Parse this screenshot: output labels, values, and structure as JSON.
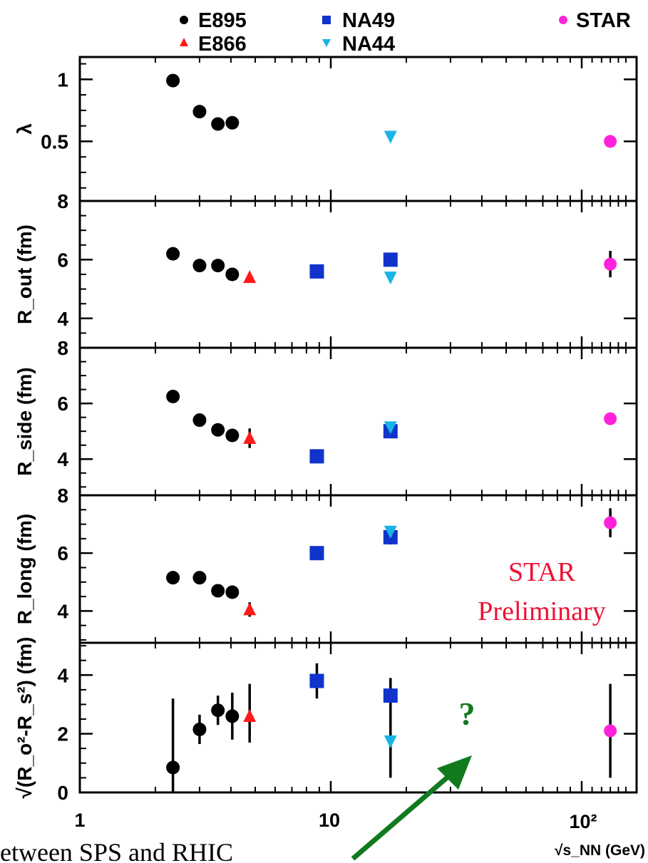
{
  "chart_data": {
    "type": "scatter",
    "x_scale": "log",
    "xlim": [
      1,
      160
    ],
    "xlabel": "√s_NN (GeV)",
    "x_ticks": [
      {
        "value": 1,
        "label": "1"
      },
      {
        "value": 10,
        "label": "10"
      },
      {
        "value": 100,
        "label": "10²"
      }
    ],
    "legend": [
      {
        "name": "E895",
        "marker": "circle",
        "color": "#000000"
      },
      {
        "name": "E866",
        "marker": "triangle-up",
        "color": "#ff1a1a"
      },
      {
        "name": "NA49",
        "marker": "square",
        "color": "#1033cc"
      },
      {
        "name": "NA44",
        "marker": "triangle-down",
        "color": "#19b4e6"
      },
      {
        "name": "STAR",
        "marker": "circle",
        "color": "#ff22dd"
      }
    ],
    "panels": [
      {
        "ylabel": "λ",
        "ylim": [
          0.02,
          1.18
        ],
        "ticks": [
          {
            "value": 1,
            "label": "1"
          },
          {
            "value": 0.5,
            "label": "0.5"
          }
        ],
        "series": {
          "E895": [
            [
              2.35,
              0.99
            ],
            [
              3.0,
              0.74
            ],
            [
              3.55,
              0.64
            ],
            [
              4.05,
              0.65
            ]
          ],
          "NA44": [
            [
              17.3,
              0.54
            ]
          ],
          "STAR": [
            [
              130,
              0.5
            ]
          ]
        }
      },
      {
        "ylabel": "R_out (fm)",
        "ylim": [
          3.0,
          8.0
        ],
        "ticks": [
          {
            "value": 8,
            "label": "8"
          },
          {
            "value": 6,
            "label": "6"
          },
          {
            "value": 4,
            "label": "4"
          }
        ],
        "series": {
          "E895": [
            [
              2.35,
              6.2
            ],
            [
              3.0,
              5.8
            ],
            [
              3.55,
              5.8
            ],
            [
              4.05,
              5.5
            ]
          ],
          "E866": [
            [
              4.75,
              5.4
            ]
          ],
          "NA49": [
            [
              8.8,
              5.6
            ],
            [
              17.3,
              6.0
            ]
          ],
          "NA44": [
            [
              17.3,
              5.4
            ]
          ],
          "STAR": [
            [
              130,
              5.85,
              0.45
            ]
          ]
        }
      },
      {
        "ylabel": "R_side (fm)",
        "ylim": [
          2.7,
          8.0
        ],
        "ticks": [
          {
            "value": 8,
            "label": "8"
          },
          {
            "value": 6,
            "label": "6"
          },
          {
            "value": 4,
            "label": "4"
          }
        ],
        "series": {
          "E895": [
            [
              2.35,
              6.25
            ],
            [
              3.0,
              5.4
            ],
            [
              3.55,
              5.05
            ],
            [
              4.05,
              4.85
            ]
          ],
          "E866": [
            [
              4.75,
              4.75,
              0.35
            ]
          ],
          "NA49": [
            [
              8.8,
              4.1,
              0.25
            ],
            [
              17.3,
              5.0,
              0.2
            ]
          ],
          "NA44": [
            [
              17.3,
              5.15
            ]
          ],
          "STAR": [
            [
              130,
              5.45
            ]
          ]
        }
      },
      {
        "ylabel": "R_long (fm)",
        "ylim": [
          2.9,
          8.0
        ],
        "ticks": [
          {
            "value": 8,
            "label": "8"
          },
          {
            "value": 6,
            "label": "6"
          },
          {
            "value": 4,
            "label": "4"
          }
        ],
        "series": {
          "E895": [
            [
              2.35,
              5.15
            ],
            [
              3.0,
              5.15
            ],
            [
              3.55,
              4.7
            ],
            [
              4.05,
              4.65
            ]
          ],
          "E866": [
            [
              4.75,
              4.05,
              0.25
            ]
          ],
          "NA49": [
            [
              8.8,
              6.0
            ],
            [
              17.3,
              6.55,
              0.25
            ]
          ],
          "NA44": [
            [
              17.3,
              6.75
            ]
          ],
          "STAR": [
            [
              130,
              7.05,
              0.5
            ]
          ]
        }
      },
      {
        "ylabel": "√(R_o²-R_s²) (fm)",
        "ylim": [
          0,
          5.1
        ],
        "ticks": [
          {
            "value": 4,
            "label": "4"
          },
          {
            "value": 2,
            "label": "2"
          },
          {
            "value": 0,
            "label": "0"
          }
        ],
        "series": {
          "E895": [
            [
              2.35,
              0.85,
              2.35,
              0.85
            ],
            [
              3.0,
              2.15,
              0.5,
              0.5
            ],
            [
              3.55,
              2.8,
              0.5,
              0.5
            ],
            [
              4.05,
              2.6,
              0.8,
              0.8
            ]
          ],
          "E866": [
            [
              4.75,
              2.6,
              1.1,
              0.9
            ]
          ],
          "NA49": [
            [
              8.8,
              3.8,
              0.6,
              0.6
            ],
            [
              17.3,
              3.3,
              0.6,
              2.8
            ]
          ],
          "NA44": [
            [
              17.3,
              1.75,
              0.3,
              0.3
            ]
          ],
          "STAR": [
            [
              130,
              2.1,
              1.6,
              1.6
            ]
          ]
        }
      }
    ],
    "annotations": [
      {
        "text": "STAR",
        "color": "#ee1133"
      },
      {
        "text": "Preliminary",
        "color": "#ee1133"
      },
      {
        "text": "?",
        "color": "#117a1f"
      },
      {
        "text": "etween SPS and RHIC",
        "color": "#000000"
      }
    ]
  }
}
